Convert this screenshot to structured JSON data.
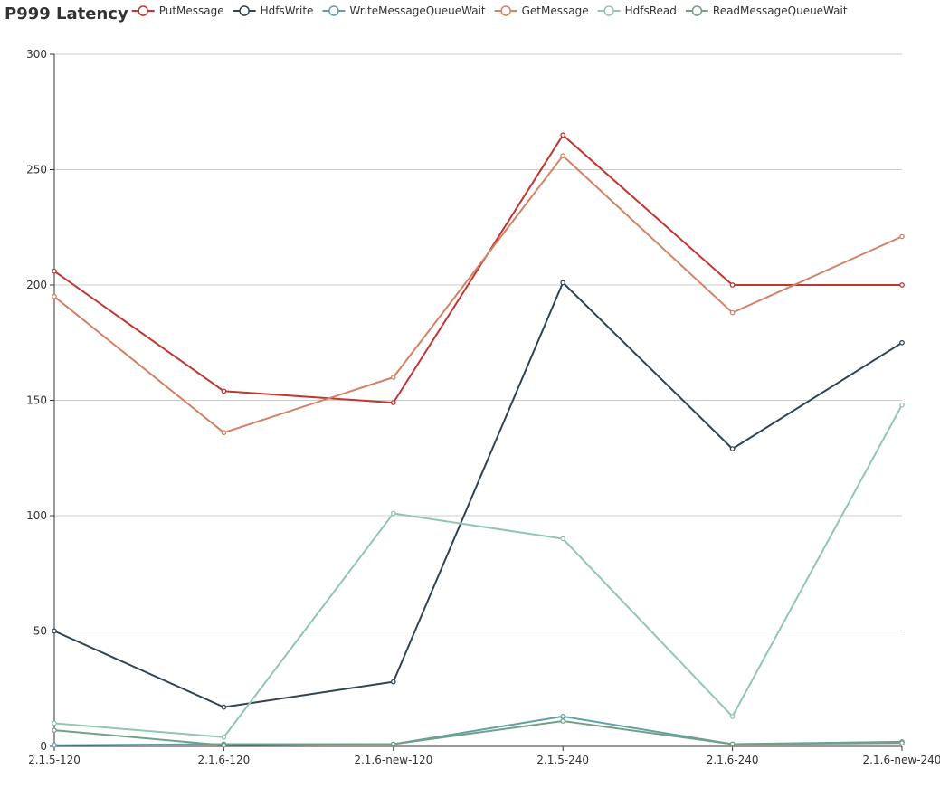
{
  "chart_data": {
    "type": "line",
    "title": "P999 Latency",
    "categories": [
      "2.1.5-120",
      "2.1.6-120",
      "2.1.6-new-120",
      "2.1.5-240",
      "2.1.6-240",
      "2.1.6-new-240"
    ],
    "ylim": [
      0,
      300
    ],
    "yticks": [
      0,
      50,
      100,
      150,
      200,
      250,
      300
    ],
    "grid": true,
    "legend_position": "top",
    "series": [
      {
        "name": "PutMessage",
        "color": "#c23531",
        "values": [
          206,
          154,
          149,
          265,
          200,
          200
        ]
      },
      {
        "name": "HdfsWrite",
        "color": "#2f4554",
        "values": [
          50,
          17,
          28,
          201,
          129,
          175
        ]
      },
      {
        "name": "WriteMessageQueueWait",
        "color": "#61a0a8",
        "values": [
          0.5,
          1,
          1,
          13,
          1,
          2
        ]
      },
      {
        "name": "GetMessage",
        "color": "#d48265",
        "values": [
          195,
          136,
          160,
          256,
          188,
          221
        ]
      },
      {
        "name": "HdfsRead",
        "color": "#91c7ae",
        "values": [
          10,
          4,
          101,
          90,
          13,
          148
        ]
      },
      {
        "name": "ReadMessageQueueWait",
        "color": "#749f83",
        "values": [
          7,
          0.5,
          1,
          11,
          1,
          1.5
        ]
      }
    ]
  }
}
